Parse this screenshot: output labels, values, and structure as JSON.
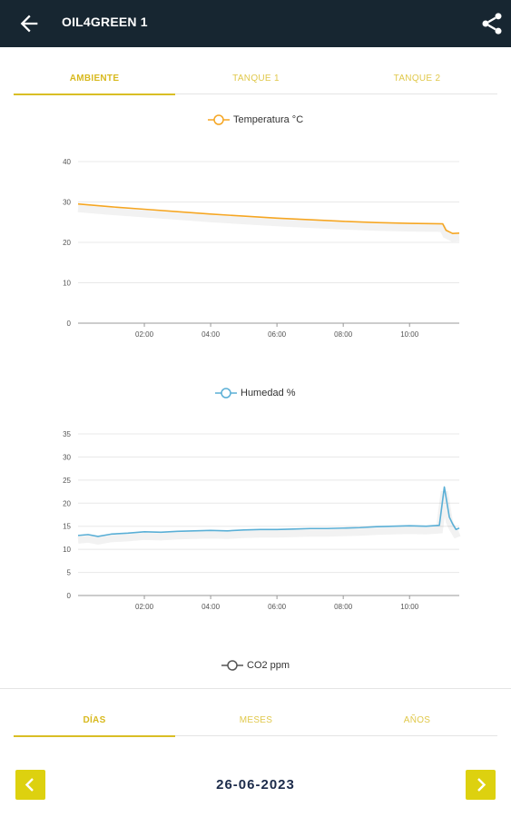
{
  "header": {
    "title": "OIL4GREEN 1",
    "back_icon": "arrow-left-icon",
    "share_icon": "share-icon",
    "background": "#172631"
  },
  "top_tabs": [
    {
      "label": "AMBIENTE",
      "active": true
    },
    {
      "label": "TANQUE 1",
      "active": false
    },
    {
      "label": "TANQUE 2",
      "active": false
    }
  ],
  "bottom_tabs": [
    {
      "label": "DÍAS",
      "active": true
    },
    {
      "label": "MESES",
      "active": false
    },
    {
      "label": "AÑOS",
      "active": false
    }
  ],
  "date_nav": {
    "date": "26-06-2023",
    "prev_icon": "chevron-left-icon",
    "next_icon": "chevron-right-icon",
    "button_color": "#ddd10f"
  },
  "co2_legend": {
    "label": "CO2 ppm",
    "color": "#555555"
  },
  "chart_data": [
    {
      "type": "line",
      "legend": "Temperatura °C",
      "color": "#f5a623",
      "xlim": [
        0,
        11.5
      ],
      "ylim": [
        0,
        40
      ],
      "yticks": [
        0,
        10,
        20,
        30,
        40
      ],
      "xticks": [
        2,
        4,
        6,
        8,
        10
      ],
      "xtick_labels": [
        "02:00",
        "04:00",
        "06:00",
        "08:00",
        "10:00"
      ],
      "grid": true,
      "series": [
        {
          "name": "Temperatura °C",
          "x": [
            0,
            1,
            2,
            3,
            4,
            5,
            6,
            7,
            8,
            9,
            10,
            11,
            11.1,
            11.3,
            11.5
          ],
          "y": [
            29.5,
            28.8,
            28.2,
            27.6,
            27,
            26.5,
            26,
            25.6,
            25.2,
            24.9,
            24.7,
            24.6,
            23,
            22.2,
            22.3
          ]
        }
      ]
    },
    {
      "type": "line",
      "legend": "Humedad %",
      "color": "#5aafd6",
      "xlim": [
        0,
        11.5
      ],
      "ylim": [
        0,
        35
      ],
      "yticks": [
        0,
        5,
        10,
        15,
        20,
        25,
        30,
        35
      ],
      "xticks": [
        2,
        4,
        6,
        8,
        10
      ],
      "xtick_labels": [
        "02:00",
        "04:00",
        "06:00",
        "08:00",
        "10:00"
      ],
      "grid": true,
      "series": [
        {
          "name": "Humedad %",
          "x": [
            0,
            0.3,
            0.6,
            1,
            1.5,
            2,
            2.5,
            3,
            3.5,
            4,
            4.5,
            5,
            5.5,
            6,
            6.5,
            7,
            7.5,
            8,
            8.5,
            9,
            9.5,
            10,
            10.5,
            10.9,
            11.05,
            11.2,
            11.3,
            11.4,
            11.5
          ],
          "y": [
            13,
            13.2,
            12.8,
            13.3,
            13.5,
            13.8,
            13.7,
            13.9,
            14.0,
            14.1,
            14.0,
            14.2,
            14.3,
            14.3,
            14.4,
            14.5,
            14.5,
            14.6,
            14.7,
            14.9,
            15.0,
            15.1,
            15.0,
            15.2,
            23.5,
            17,
            15.5,
            14.3,
            14.6
          ]
        }
      ]
    }
  ]
}
